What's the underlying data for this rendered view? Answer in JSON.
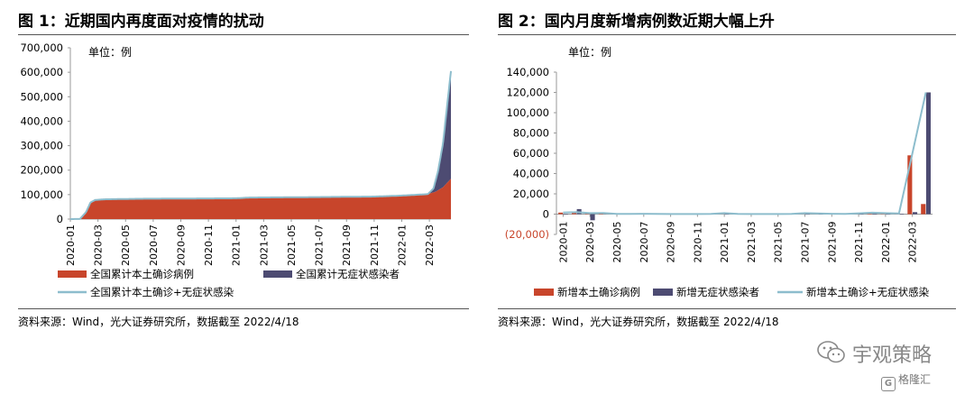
{
  "chart_data": [
    {
      "type": "area",
      "title": "图 1：近期国内再度面对疫情的扰动",
      "unit_label": "单位：例",
      "ylim": [
        0,
        700000
      ],
      "y_ticks": [
        "0",
        "100,000",
        "200,000",
        "300,000",
        "400,000",
        "500,000",
        "600,000",
        "700,000"
      ],
      "x_ticks": [
        "2020-01",
        "2020-03",
        "2020-05",
        "2020-07",
        "2020-09",
        "2020-11",
        "2021-01",
        "2021-03",
        "2021-05",
        "2021-07",
        "2021-09",
        "2021-11",
        "2022-01",
        "2022-03"
      ],
      "x_range": [
        "2020-01",
        "2022-04-18"
      ],
      "grid": false,
      "legend_position": "bottom",
      "series": [
        {
          "name": "全国累计本土确诊病例",
          "kind": "area",
          "color": "#c8452b",
          "points": [
            [
              "2020-01-01",
              0
            ],
            [
              "2020-01-22",
              500
            ],
            [
              "2020-02-05",
              28000
            ],
            [
              "2020-02-15",
              68000
            ],
            [
              "2020-02-25",
              78000
            ],
            [
              "2020-03-15",
              80800
            ],
            [
              "2020-06-01",
              83000
            ],
            [
              "2020-12-31",
              85000
            ],
            [
              "2021-01-31",
              88000
            ],
            [
              "2021-06-30",
              90000
            ],
            [
              "2021-10-31",
              92000
            ],
            [
              "2021-12-31",
              96000
            ],
            [
              "2022-02-28",
              102000
            ],
            [
              "2022-03-15",
              112000
            ],
            [
              "2022-03-31",
              130000
            ],
            [
              "2022-04-18",
              165000
            ]
          ]
        },
        {
          "name": "全国累计无症状感染者",
          "kind": "area",
          "color": "#4d4b72",
          "points": [
            [
              "2020-01-01",
              0
            ],
            [
              "2022-02-28",
              0
            ],
            [
              "2022-03-10",
              15000
            ],
            [
              "2022-03-20",
              70000
            ],
            [
              "2022-03-31",
              180000
            ],
            [
              "2022-04-10",
              320000
            ],
            [
              "2022-04-18",
              440000
            ]
          ]
        },
        {
          "name": "全国累计本土确诊+无症状感染",
          "kind": "line",
          "color": "#8dbdcd",
          "points": [
            [
              "2020-01-01",
              0
            ],
            [
              "2020-01-22",
              500
            ],
            [
              "2020-02-05",
              28000
            ],
            [
              "2020-02-15",
              68000
            ],
            [
              "2020-02-25",
              78000
            ],
            [
              "2020-03-15",
              80800
            ],
            [
              "2020-06-01",
              83000
            ],
            [
              "2020-12-31",
              85000
            ],
            [
              "2021-01-31",
              88000
            ],
            [
              "2021-06-30",
              90000
            ],
            [
              "2021-10-31",
              92000
            ],
            [
              "2021-12-31",
              96000
            ],
            [
              "2022-02-28",
              102000
            ],
            [
              "2022-03-10",
              125000
            ],
            [
              "2022-03-20",
              195000
            ],
            [
              "2022-03-31",
              310000
            ],
            [
              "2022-04-10",
              470000
            ],
            [
              "2022-04-18",
              605000
            ]
          ]
        }
      ]
    },
    {
      "type": "bar",
      "title": "图 2：国内月度新增病例数近期大幅上升",
      "unit_label": "单位：例",
      "ylim": [
        -20000,
        140000
      ],
      "y_ticks": [
        "(20,000)",
        "0",
        "20,000",
        "40,000",
        "60,000",
        "80,000",
        "100,000",
        "120,000",
        "140,000"
      ],
      "y_tick_values": [
        -20000,
        0,
        20000,
        40000,
        60000,
        80000,
        100000,
        120000,
        140000
      ],
      "x_ticks": [
        "2020-01",
        "2020-03",
        "2020-05",
        "2020-07",
        "2020-09",
        "2020-11",
        "2021-01",
        "2021-03",
        "2021-05",
        "2021-07",
        "2021-09",
        "2021-11",
        "2022-01",
        "2022-03"
      ],
      "categories": [
        "2020-01",
        "2020-02",
        "2020-03",
        "2020-04",
        "2020-05",
        "2020-06",
        "2020-07",
        "2020-08",
        "2020-09",
        "2020-10",
        "2020-11",
        "2020-12",
        "2021-01",
        "2021-02",
        "2021-03",
        "2021-04",
        "2021-05",
        "2021-06",
        "2021-07",
        "2021-08",
        "2021-09",
        "2021-10",
        "2021-11",
        "2021-12",
        "2022-01",
        "2022-02",
        "2022-03",
        "2022-04"
      ],
      "grid": false,
      "legend_position": "bottom",
      "series": [
        {
          "name": "新增本土确诊病例",
          "kind": "bar",
          "color": "#c8452b",
          "values": [
            1500,
            2000,
            500,
            200,
            50,
            150,
            300,
            200,
            50,
            50,
            50,
            200,
            800,
            200,
            50,
            50,
            50,
            200,
            800,
            500,
            300,
            200,
            600,
            1200,
            800,
            400,
            58000,
            10000
          ]
        },
        {
          "name": "新增无症状感染者",
          "kind": "bar",
          "color": "#4d4b72",
          "values": [
            0,
            5000,
            -6000,
            1000,
            200,
            100,
            100,
            100,
            50,
            50,
            50,
            100,
            200,
            100,
            50,
            50,
            50,
            100,
            200,
            100,
            100,
            100,
            200,
            200,
            200,
            200,
            2000,
            120000
          ]
        },
        {
          "name": "新增本土确诊+无症状感染",
          "kind": "line",
          "color": "#8dbdcd",
          "values": [
            1500,
            2000,
            1000,
            1200,
            300,
            250,
            400,
            300,
            100,
            100,
            100,
            300,
            1000,
            300,
            100,
            100,
            100,
            300,
            1000,
            600,
            400,
            300,
            800,
            1400,
            1000,
            600,
            60000,
            120000
          ]
        }
      ]
    }
  ],
  "source_left": "资料来源：Wind，光大证券研究所，数据截至 2022/4/18",
  "source_right": "资料来源：Wind，光大证券研究所，数据截至 2022/4/18",
  "watermark": {
    "text": "宇观策略",
    "badge_mark": "G",
    "badge": "格隆汇",
    "icon_name": "wechat-icon",
    "color": "#888888"
  }
}
